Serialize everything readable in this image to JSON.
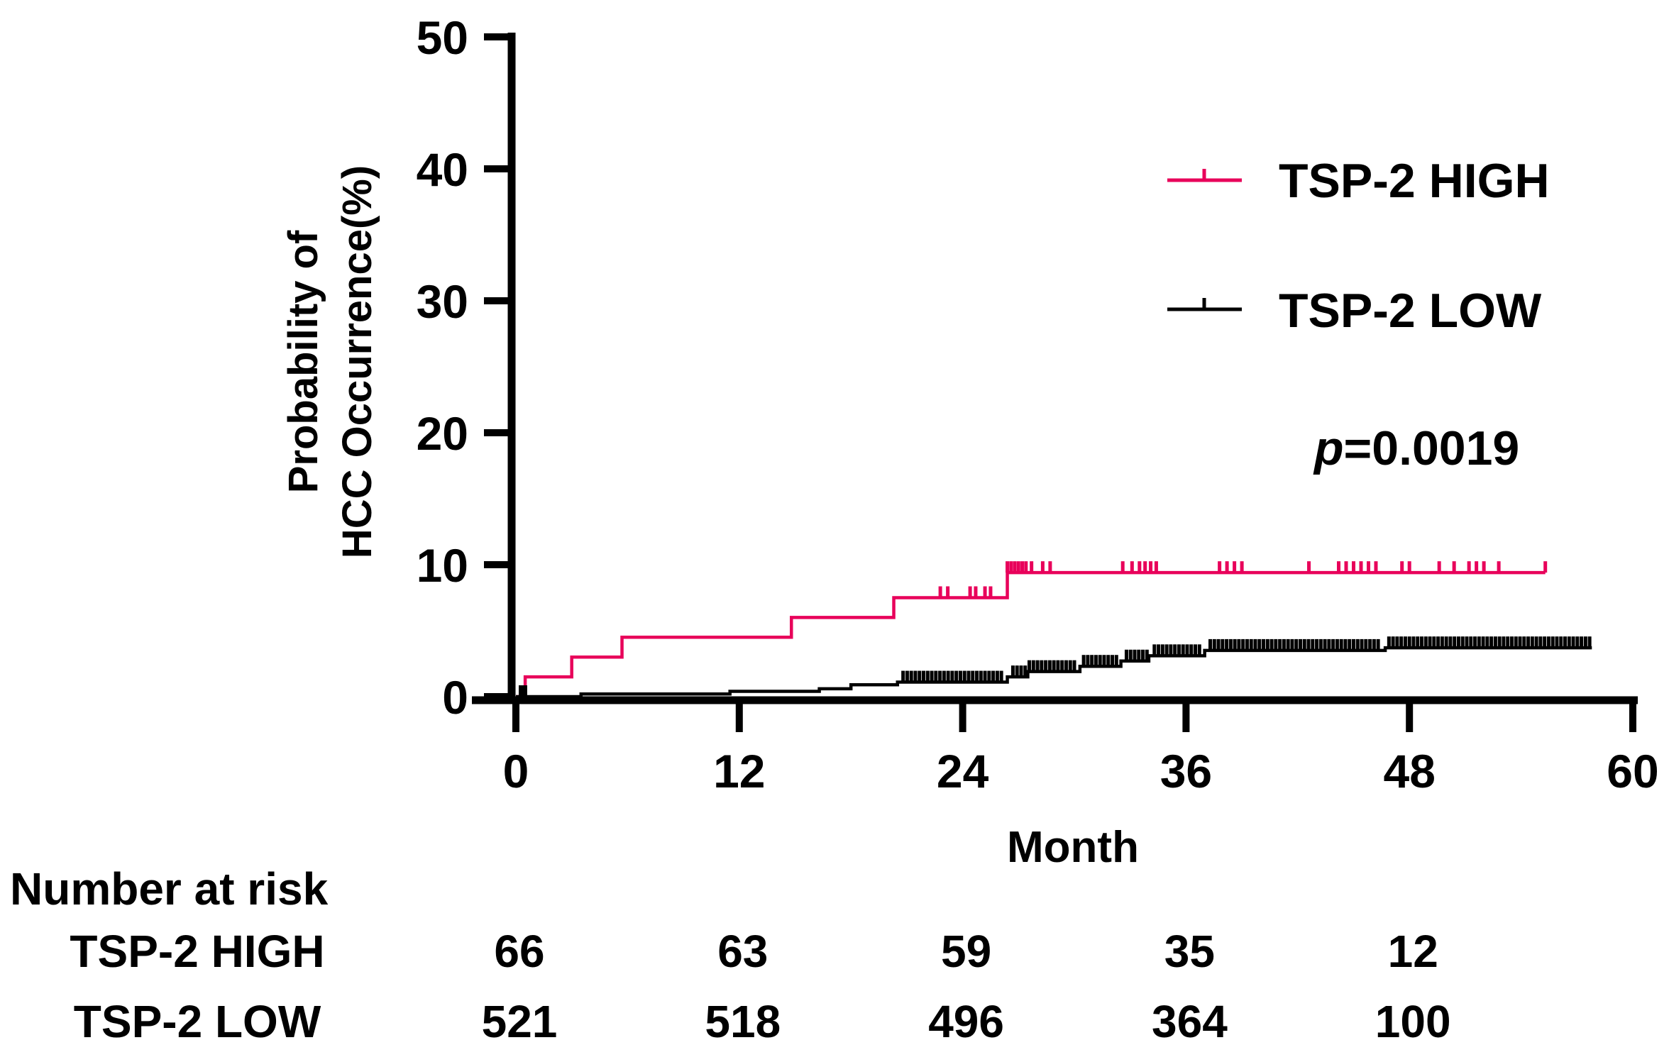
{
  "chart_data": {
    "type": "line",
    "subtype": "kaplan-meier-cumulative-incidence",
    "ylabel_lines": [
      "Probability of",
      "HCC Occurrence(%)"
    ],
    "xlabel": "Month",
    "xlim": [
      0,
      60
    ],
    "ylim": [
      0,
      50
    ],
    "x_ticks": [
      0,
      12,
      24,
      36,
      48,
      60
    ],
    "x_tick_labels": [
      "0",
      "12",
      "24",
      "36",
      "48",
      "60"
    ],
    "y_ticks": [
      0,
      10,
      20,
      30,
      40,
      50
    ],
    "y_tick_labels": [
      "0",
      "10",
      "20",
      "30",
      "40",
      "50"
    ],
    "legend_position": "top-right",
    "annotation": {
      "italic": "p",
      "rest": "=0.0019"
    },
    "series": [
      {
        "name": "TSP-2 HIGH",
        "color": "#e8005a",
        "x": [
          0,
          0.5,
          0.5,
          3.0,
          3.0,
          5.7,
          5.7,
          14.8,
          14.8,
          20.3,
          20.3,
          26.4,
          26.4,
          55.3
        ],
        "y": [
          0,
          0,
          1.5,
          1.5,
          3.0,
          3.0,
          4.5,
          4.5,
          6.0,
          6.0,
          7.5,
          7.5,
          9.4,
          9.4
        ],
        "censor_x": [
          22.8,
          23.2,
          24.4,
          24.7,
          25.2,
          25.5,
          26.4,
          26.6,
          26.8,
          27.0,
          27.2,
          27.4,
          27.7,
          28.3,
          28.7,
          32.6,
          33.1,
          33.5,
          33.8,
          34.1,
          34.4,
          37.8,
          38.2,
          38.6,
          39.0,
          42.6,
          44.2,
          44.6,
          45.0,
          45.4,
          45.8,
          46.2,
          47.6,
          48.0,
          49.6,
          50.4,
          51.2,
          51.6,
          52.0,
          52.8,
          55.3
        ],
        "censor_y": [
          7.5,
          7.5,
          7.5,
          7.5,
          7.5,
          7.5,
          9.4,
          9.4,
          9.4,
          9.4,
          9.4,
          9.4,
          9.4,
          9.4,
          9.4,
          9.4,
          9.4,
          9.4,
          9.4,
          9.4,
          9.4,
          9.4,
          9.4,
          9.4,
          9.4,
          9.4,
          9.4,
          9.4,
          9.4,
          9.4,
          9.4,
          9.4,
          9.4,
          9.4,
          9.4,
          9.4,
          9.4,
          9.4,
          9.4,
          9.4,
          9.4
        ]
      },
      {
        "name": "TSP-2 LOW",
        "color": "#000000",
        "x": [
          0,
          3.5,
          3.5,
          11.5,
          11.5,
          16.3,
          16.3,
          18.0,
          18.0,
          20.5,
          20.5,
          26.4,
          26.4,
          27.5,
          27.5,
          30.3,
          30.3,
          32.5,
          32.5,
          34.0,
          34.0,
          37.0,
          37.0,
          46.7,
          46.7,
          57.8
        ],
        "y": [
          0,
          0,
          0.2,
          0.2,
          0.4,
          0.4,
          0.6,
          0.6,
          0.9,
          0.9,
          1.1,
          1.1,
          1.5,
          1.5,
          1.9,
          1.9,
          2.3,
          2.3,
          2.7,
          2.7,
          3.1,
          3.1,
          3.5,
          3.5,
          3.7,
          3.7
        ],
        "censor_start": [
          0.5,
          0.5,
          0.5,
          0.5,
          0.5,
          0.5,
          0.5,
          0.4,
          0.4,
          0.3,
          0.3,
          0.25,
          0.25
        ],
        "censor_ranges": [
          {
            "from": 20.8,
            "to": 26.2
          },
          {
            "from": 26.7,
            "to": 30.1
          },
          {
            "from": 30.5,
            "to": 32.3
          },
          {
            "from": 32.8,
            "to": 33.9
          },
          {
            "from": 34.3,
            "to": 36.8
          },
          {
            "from": 37.3,
            "to": 46.5
          },
          {
            "from": 46.9,
            "to": 57.8
          }
        ]
      }
    ],
    "risk_table": {
      "title": "Number at risk",
      "time_points": [
        0,
        12,
        24,
        36,
        48
      ],
      "rows": [
        {
          "label": "TSP-2 HIGH",
          "values": [
            "66",
            "63",
            "59",
            "35",
            "12"
          ]
        },
        {
          "label": "TSP-2 LOW",
          "values": [
            "521",
            "518",
            "496",
            "364",
            "100"
          ]
        }
      ]
    }
  }
}
